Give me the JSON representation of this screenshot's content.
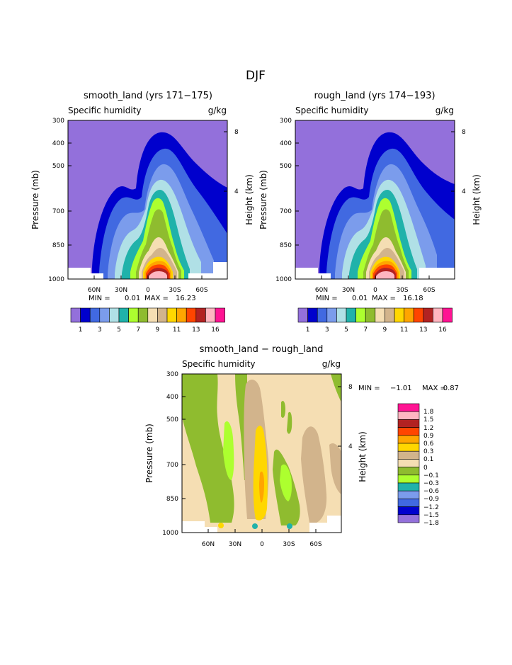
{
  "page_title": "DJF",
  "chart_data": [
    {
      "type": "heatmap",
      "title": "smooth_land (yrs 171−175)",
      "subtitle_left": "Specific humidity",
      "subtitle_right": "g/kg",
      "ylabel": "Pressure (mb)",
      "ylabel_right": "Height (km)",
      "yticks": [
        "300",
        "400",
        "500",
        "700",
        "850",
        "1000"
      ],
      "yticks_right": [
        "8",
        "4"
      ],
      "xticks": [
        "60N",
        "30N",
        "0",
        "30S",
        "60S"
      ],
      "min_label": "MIN =",
      "min_value": "0.01",
      "max_label": "MAX =",
      "max_value": "16.23",
      "colorbar_labels": [
        "1",
        "3",
        "5",
        "7",
        "9",
        "11",
        "13",
        "16"
      ]
    },
    {
      "type": "heatmap",
      "title": "rough_land (yrs 174−193)",
      "subtitle_left": "Specific humidity",
      "subtitle_right": "g/kg",
      "ylabel": "Pressure (mb)",
      "ylabel_right": "Height (km)",
      "yticks": [
        "300",
        "400",
        "500",
        "700",
        "850",
        "1000"
      ],
      "yticks_right": [
        "8",
        "4"
      ],
      "xticks": [
        "60N",
        "30N",
        "0",
        "30S",
        "60S"
      ],
      "min_label": "MIN =",
      "min_value": "0.01",
      "max_label": "MAX =",
      "max_value": "16.18",
      "colorbar_labels": [
        "1",
        "3",
        "5",
        "7",
        "9",
        "11",
        "13",
        "16"
      ]
    },
    {
      "type": "heatmap",
      "title": "smooth_land − rough_land",
      "subtitle_left": "Specific humidity",
      "subtitle_right": "g/kg",
      "ylabel": "Pressure (mb)",
      "ylabel_right": "Height (km)",
      "yticks": [
        "300",
        "400",
        "500",
        "700",
        "850",
        "1000"
      ],
      "yticks_right": [
        "8",
        "4"
      ],
      "xticks": [
        "60N",
        "30N",
        "0",
        "30S",
        "60S"
      ],
      "min_label": "MIN =",
      "min_value": "−1.01",
      "max_label": "MAX =",
      "max_value": "0.87",
      "colorbar_labels": [
        "1.8",
        "1.5",
        "1.2",
        "0.9",
        "0.6",
        "0.3",
        "0.1",
        "0",
        "−0.1",
        "−0.3",
        "−0.6",
        "−0.9",
        "−1.2",
        "−1.5",
        "−1.8"
      ]
    }
  ],
  "colors": {
    "humidity_scale": [
      "#9370db",
      "#0000cd",
      "#4169e1",
      "#7b9cec",
      "#b0e0e6",
      "#20b2aa",
      "#adff2f",
      "#8fbc2f",
      "#f5deb3",
      "#d2b48c",
      "#ffd700",
      "#ffa500",
      "#ff4500",
      "#b22222",
      "#ffb6c1",
      "#ff1493"
    ],
    "diff_scale": [
      "#ff1493",
      "#ffb6c1",
      "#b22222",
      "#ff4500",
      "#ffa500",
      "#ffd700",
      "#d2b48c",
      "#f5deb3",
      "#8fbc2f",
      "#adff2f",
      "#20b2aa",
      "#7b9cec",
      "#4169e1",
      "#0000cd",
      "#9370db"
    ]
  }
}
